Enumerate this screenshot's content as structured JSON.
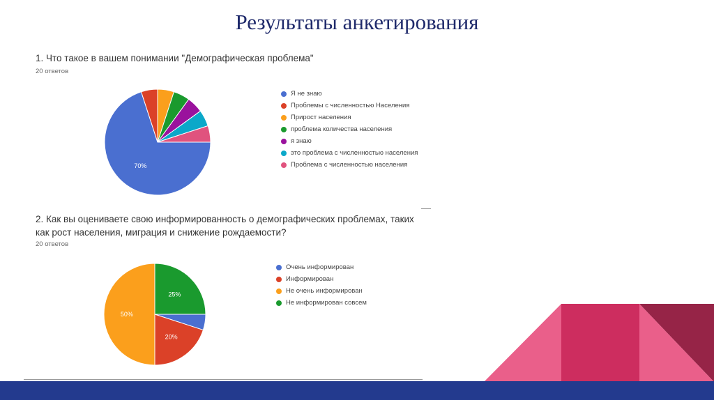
{
  "title": "Результаты анкетирования",
  "colors": {
    "title": "#1f2a6b",
    "band": "#233a8e",
    "pink": "#ea5f8a",
    "crimson": "#cd2d5f",
    "maroon": "#962447"
  },
  "chart_data": [
    {
      "type": "pie",
      "title": "1. Что такое в вашем понимании \"Демографическая проблема\"",
      "subtitle": "20 ответов",
      "slices": [
        {
          "label": "Я не знаю",
          "value": 70,
          "color": "#4a6fd0",
          "data_label": "70%"
        },
        {
          "label": "Проблемы с численностью Населения",
          "value": 5,
          "color": "#db4128",
          "data_label": ""
        },
        {
          "label": "Прирост населения",
          "value": 5,
          "color": "#fb9f1c",
          "data_label": ""
        },
        {
          "label": "проблема количества населения",
          "value": 5,
          "color": "#1a9a2e",
          "data_label": ""
        },
        {
          "label": "я знаю",
          "value": 5,
          "color": "#9a129d",
          "data_label": ""
        },
        {
          "label": "это проблема с численностью населения",
          "value": 5,
          "color": "#0ba8c9",
          "data_label": ""
        },
        {
          "label": "Проблема с численностью населения",
          "value": 5,
          "color": "#e0537e",
          "data_label": ""
        }
      ],
      "legend_position": "right"
    },
    {
      "type": "pie",
      "title": "2. Как вы оцениваете свою информированность о демографических проблемах, таких как рост населения, миграция и снижение рождаемости?",
      "subtitle": "20 ответов",
      "slices": [
        {
          "label": "Очень информирован",
          "value": 5,
          "color": "#4a6fd0",
          "data_label": ""
        },
        {
          "label": "Информирован",
          "value": 20,
          "color": "#db4128",
          "data_label": "20%"
        },
        {
          "label": "Не очень информирован",
          "value": 50,
          "color": "#fb9f1c",
          "data_label": "50%"
        },
        {
          "label": "Не информирован совсем",
          "value": 25,
          "color": "#1a9a2e",
          "data_label": "25%"
        }
      ],
      "legend_position": "right"
    }
  ]
}
